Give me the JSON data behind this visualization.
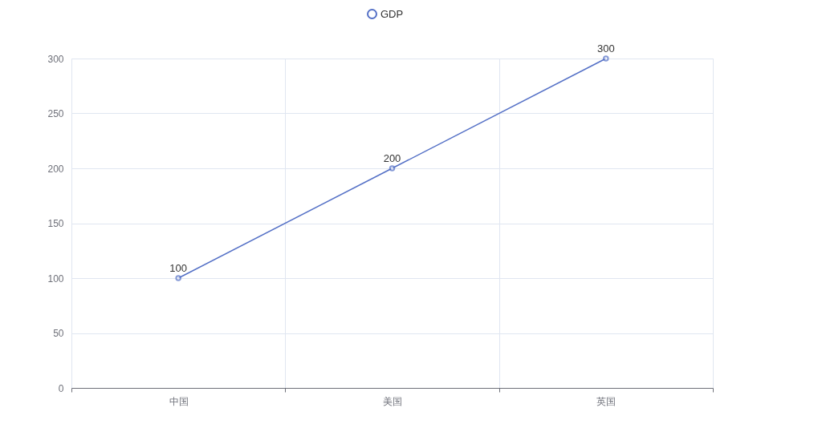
{
  "chart_data": {
    "type": "line",
    "categories": [
      "中国",
      "美国",
      "英国"
    ],
    "series": [
      {
        "name": "GDP",
        "color": "#5470c6",
        "values": [
          100,
          200,
          300
        ]
      }
    ],
    "ylim": [
      0,
      300
    ],
    "yticks": [
      0,
      50,
      100,
      150,
      200,
      250,
      300
    ],
    "grid": true,
    "legend": "top",
    "marker": "circle",
    "data_labels": true
  }
}
